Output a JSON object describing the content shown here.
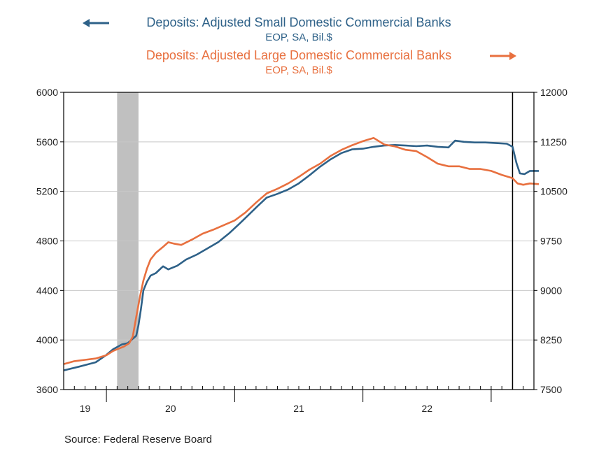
{
  "chart_data": {
    "type": "line",
    "legend": {
      "small_title": "Deposits: Adjusted Small Domestic Commercial Banks",
      "small_sub": "EOP, SA, Bil.$",
      "large_title": "Deposits: Adjusted Large Domestic Commercial Banks",
      "large_sub": "EOP, SA, Bil.$"
    },
    "colors": {
      "small": "#2e6188",
      "large": "#e8703f",
      "recession": "#c0c0c0",
      "grid": "#c8c8c8"
    },
    "left_axis": {
      "ylim": [
        3600,
        6000
      ],
      "ticks": [
        "6000",
        "5600",
        "5200",
        "4800",
        "4400",
        "4000",
        "3600"
      ]
    },
    "right_axis": {
      "ylim": [
        7500,
        12000
      ],
      "ticks": [
        "12000",
        "11250",
        "10500",
        "9750",
        "9000",
        "8250",
        "7500"
      ]
    },
    "x_labels": [
      "19",
      "20",
      "21",
      "22"
    ],
    "x_range": [
      "2019-09",
      "2023-05"
    ],
    "recession": [
      "2020-02",
      "2020-04"
    ],
    "event_marker": "2023-03",
    "series": [
      {
        "id": "small",
        "name": "Deposits: Adjusted Small Domestic Commercial Banks",
        "axis": "left",
        "points": [
          [
            "2019-09-01",
            3755
          ],
          [
            "2019-10-15",
            3785
          ],
          [
            "2019-12-01",
            3820
          ],
          [
            "2020-01-01",
            3880
          ],
          [
            "2020-01-20",
            3925
          ],
          [
            "2020-02-15",
            3965
          ],
          [
            "2020-03-01",
            3975
          ],
          [
            "2020-03-15",
            4010
          ],
          [
            "2020-03-25",
            4035
          ],
          [
            "2020-04-01",
            4120
          ],
          [
            "2020-04-08",
            4250
          ],
          [
            "2020-04-15",
            4400
          ],
          [
            "2020-04-25",
            4470
          ],
          [
            "2020-05-05",
            4520
          ],
          [
            "2020-05-20",
            4540
          ],
          [
            "2020-06-10",
            4595
          ],
          [
            "2020-06-25",
            4570
          ],
          [
            "2020-07-20",
            4600
          ],
          [
            "2020-08-15",
            4650
          ],
          [
            "2020-09-15",
            4690
          ],
          [
            "2020-10-15",
            4740
          ],
          [
            "2020-11-15",
            4790
          ],
          [
            "2020-12-15",
            4860
          ],
          [
            "2021-01-15",
            4940
          ],
          [
            "2021-02-10",
            5010
          ],
          [
            "2021-03-05",
            5080
          ],
          [
            "2021-04-01",
            5150
          ],
          [
            "2021-05-01",
            5180
          ],
          [
            "2021-06-01",
            5215
          ],
          [
            "2021-07-01",
            5265
          ],
          [
            "2021-08-01",
            5330
          ],
          [
            "2021-09-01",
            5400
          ],
          [
            "2021-10-01",
            5460
          ],
          [
            "2021-11-01",
            5510
          ],
          [
            "2021-12-01",
            5540
          ],
          [
            "2022-01-01",
            5545
          ],
          [
            "2022-02-01",
            5560
          ],
          [
            "2022-03-01",
            5570
          ],
          [
            "2022-04-01",
            5575
          ],
          [
            "2022-05-01",
            5570
          ],
          [
            "2022-06-01",
            5565
          ],
          [
            "2022-07-01",
            5570
          ],
          [
            "2022-08-01",
            5560
          ],
          [
            "2022-09-01",
            5555
          ],
          [
            "2022-09-20",
            5610
          ],
          [
            "2022-10-15",
            5600
          ],
          [
            "2022-11-15",
            5595
          ],
          [
            "2022-12-15",
            5595
          ],
          [
            "2023-01-15",
            5590
          ],
          [
            "2023-02-15",
            5585
          ],
          [
            "2023-03-01",
            5560
          ],
          [
            "2023-03-12",
            5430
          ],
          [
            "2023-03-22",
            5345
          ],
          [
            "2023-04-05",
            5340
          ],
          [
            "2023-04-20",
            5365
          ],
          [
            "2023-05-15",
            5365
          ]
        ]
      },
      {
        "id": "large",
        "name": "Deposits: Adjusted Large Domestic Commercial Banks",
        "axis": "right",
        "points": [
          [
            "2019-09-01",
            7885
          ],
          [
            "2019-10-01",
            7930
          ],
          [
            "2019-11-01",
            7950
          ],
          [
            "2019-12-01",
            7970
          ],
          [
            "2020-01-01",
            8020
          ],
          [
            "2020-01-20",
            8085
          ],
          [
            "2020-02-01",
            8110
          ],
          [
            "2020-02-20",
            8150
          ],
          [
            "2020-03-05",
            8200
          ],
          [
            "2020-03-15",
            8300
          ],
          [
            "2020-03-25",
            8600
          ],
          [
            "2020-04-05",
            8900
          ],
          [
            "2020-04-15",
            9150
          ],
          [
            "2020-04-25",
            9330
          ],
          [
            "2020-05-05",
            9470
          ],
          [
            "2020-05-20",
            9570
          ],
          [
            "2020-06-10",
            9660
          ],
          [
            "2020-06-25",
            9730
          ],
          [
            "2020-07-10",
            9710
          ],
          [
            "2020-08-01",
            9690
          ],
          [
            "2020-09-01",
            9770
          ],
          [
            "2020-10-01",
            9860
          ],
          [
            "2020-11-01",
            9920
          ],
          [
            "2020-12-01",
            9990
          ],
          [
            "2021-01-01",
            10060
          ],
          [
            "2021-02-01",
            10180
          ],
          [
            "2021-03-01",
            10330
          ],
          [
            "2021-04-01",
            10470
          ],
          [
            "2021-05-01",
            10540
          ],
          [
            "2021-06-01",
            10620
          ],
          [
            "2021-07-01",
            10720
          ],
          [
            "2021-08-01",
            10830
          ],
          [
            "2021-09-01",
            10920
          ],
          [
            "2021-10-01",
            11040
          ],
          [
            "2021-11-01",
            11130
          ],
          [
            "2021-12-01",
            11200
          ],
          [
            "2022-01-01",
            11260
          ],
          [
            "2022-02-01",
            11310
          ],
          [
            "2022-03-01",
            11210
          ],
          [
            "2022-04-01",
            11180
          ],
          [
            "2022-05-01",
            11130
          ],
          [
            "2022-06-01",
            11110
          ],
          [
            "2022-07-01",
            11020
          ],
          [
            "2022-08-01",
            10920
          ],
          [
            "2022-09-01",
            10880
          ],
          [
            "2022-10-01",
            10880
          ],
          [
            "2022-11-01",
            10840
          ],
          [
            "2022-12-01",
            10840
          ],
          [
            "2023-01-01",
            10810
          ],
          [
            "2023-02-01",
            10750
          ],
          [
            "2023-03-01",
            10700
          ],
          [
            "2023-03-15",
            10620
          ],
          [
            "2023-04-01",
            10600
          ],
          [
            "2023-04-20",
            10620
          ],
          [
            "2023-05-15",
            10610
          ]
        ]
      }
    ],
    "source": "Source:  Federal Reserve Board"
  }
}
